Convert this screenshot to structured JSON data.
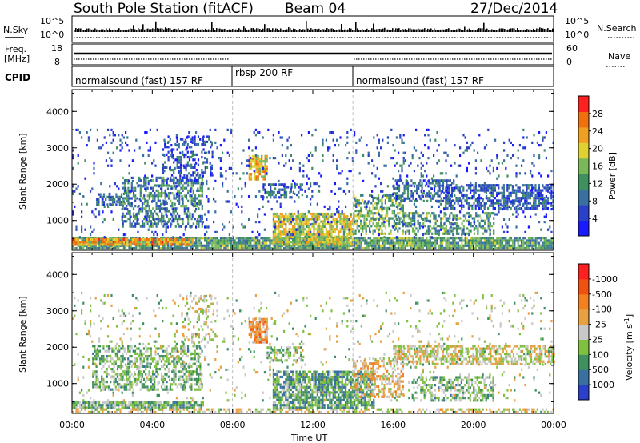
{
  "header": {
    "station": "South Pole Station (fitACF)",
    "beam": "Beam 04",
    "date": "27/Dec/2014"
  },
  "nsky_panel": {
    "left_label": "N.Sky",
    "left_ticks": [
      "10^5",
      "10^0"
    ],
    "right_ticks": [
      "10^5",
      "10^0"
    ],
    "right_legend": "N.Search"
  },
  "freq_panel": {
    "left_label_line1": "Freq.",
    "left_label_line2": "[MHz]",
    "left_ticks": [
      "18",
      "8"
    ],
    "right_ticks": [
      "60",
      "0"
    ],
    "right_legend": "Nave"
  },
  "cpid_panel": {
    "label": "CPID",
    "segments": [
      {
        "label": "normalsound (fast) 157 RF",
        "start_h": 0,
        "end_h": 8
      },
      {
        "label": "rbsp 200 RF",
        "start_h": 8,
        "end_h": 14
      },
      {
        "label": "normalsound (fast) 157 RF",
        "start_h": 14,
        "end_h": 24
      }
    ]
  },
  "x_axis": {
    "label": "Time UT",
    "ticks": [
      "00:00",
      "04:00",
      "08:00",
      "12:00",
      "16:00",
      "20:00",
      "00:00"
    ]
  },
  "power_panel": {
    "ylabel": "Slant Range [km]",
    "yticks": [
      "1000",
      "2000",
      "3000",
      "4000"
    ],
    "colorbar_label": "Power [dB]",
    "colorbar_ticks": [
      "4",
      "8",
      "12",
      "16",
      "20",
      "24",
      "28"
    ]
  },
  "velocity_panel": {
    "ylabel": "Slant Range [km]",
    "yticks": [
      "1000",
      "2000",
      "3000",
      "4000"
    ],
    "colorbar_label": "Velocity [m s",
    "colorbar_label_sup": "-1",
    "colorbar_label_end": "]",
    "colorbar_ticks": [
      "1000",
      "500",
      "100",
      "25",
      "-25",
      "-100",
      "-500",
      "-1000"
    ]
  },
  "colors": {
    "power_scale": [
      "#1a1aff",
      "#2a40c8",
      "#3a70a0",
      "#3f9060",
      "#7ab85a",
      "#e0d030",
      "#f0a020",
      "#f07010",
      "#ff2020"
    ],
    "velocity_scale": [
      "#2a40c8",
      "#3a70a0",
      "#3f9060",
      "#80c040",
      "#c8c8c8",
      "#e8a040",
      "#f08020",
      "#f05010",
      "#ff2020"
    ],
    "marker": "#c0c0c0"
  },
  "chart_data": [
    {
      "type": "heatmap",
      "title": "Power",
      "ylabel": "Slant Range [km]",
      "xlabel": "Time UT",
      "xlim_hours": [
        0,
        24
      ],
      "ylim_km": [
        180,
        4600
      ],
      "colorbar": {
        "label": "Power [dB]",
        "range": [
          0,
          30
        ]
      },
      "regions": [
        {
          "t0": 0.0,
          "t1": 24.0,
          "r0": 200,
          "r1": 500,
          "value": 12,
          "density": 0.9
        },
        {
          "t0": 0.0,
          "t1": 6.0,
          "r0": 300,
          "r1": 450,
          "value": 22,
          "density": 0.8
        },
        {
          "t0": 1.2,
          "t1": 2.5,
          "r0": 1400,
          "r1": 1700,
          "value": 8,
          "density": 0.6
        },
        {
          "t0": 2.5,
          "t1": 6.5,
          "r0": 800,
          "r1": 2200,
          "value": 10,
          "density": 0.5
        },
        {
          "t0": 4.5,
          "t1": 7.0,
          "r0": 2000,
          "r1": 3300,
          "value": 6,
          "density": 0.3
        },
        {
          "t0": 8.8,
          "t1": 9.7,
          "r0": 2100,
          "r1": 2800,
          "value": 20,
          "density": 0.8
        },
        {
          "t0": 9.5,
          "t1": 11.5,
          "r0": 1600,
          "r1": 2000,
          "value": 8,
          "density": 0.5
        },
        {
          "t0": 10.0,
          "t1": 14.0,
          "r0": 300,
          "r1": 1200,
          "value": 18,
          "density": 0.75
        },
        {
          "t0": 14.0,
          "t1": 16.5,
          "r0": 600,
          "r1": 1700,
          "value": 14,
          "density": 0.55
        },
        {
          "t0": 16.0,
          "t1": 19.0,
          "r0": 1500,
          "r1": 2100,
          "value": 8,
          "density": 0.5
        },
        {
          "t0": 16.5,
          "t1": 21.0,
          "r0": 600,
          "r1": 1200,
          "value": 12,
          "density": 0.5
        },
        {
          "t0": 18.5,
          "t1": 24.0,
          "r0": 1300,
          "r1": 2000,
          "value": 7,
          "density": 0.6
        },
        {
          "t0": 0.0,
          "t1": 24.0,
          "r0": 500,
          "r1": 3500,
          "value": 6,
          "density": 0.08
        }
      ]
    },
    {
      "type": "heatmap",
      "title": "Velocity",
      "ylabel": "Slant Range [km]",
      "xlabel": "Time UT",
      "xlim_hours": [
        0,
        24
      ],
      "ylim_km": [
        180,
        4600
      ],
      "colorbar": {
        "label": "Velocity [m s-1]",
        "range": [
          -1000,
          1000
        ]
      },
      "regions": [
        {
          "t0": 0.0,
          "t1": 6.5,
          "r0": 300,
          "r1": 450,
          "value": -300,
          "density": 0.9
        },
        {
          "t0": 0.0,
          "t1": 24.0,
          "r0": 180,
          "r1": 300,
          "value": 0,
          "density": 0.5
        },
        {
          "t0": 1.0,
          "t1": 6.5,
          "r0": 800,
          "r1": 2000,
          "value": -250,
          "density": 0.5
        },
        {
          "t0": 5.5,
          "t1": 7.0,
          "r0": 2100,
          "r1": 3400,
          "value": 0,
          "density": 0.25
        },
        {
          "t0": 8.8,
          "t1": 9.7,
          "r0": 2100,
          "r1": 2800,
          "value": 300,
          "density": 0.8
        },
        {
          "t0": 9.7,
          "t1": 11.5,
          "r0": 1600,
          "r1": 2000,
          "value": -200,
          "density": 0.5
        },
        {
          "t0": 10.0,
          "t1": 15.0,
          "r0": 300,
          "r1": 1300,
          "value": -400,
          "density": 0.75
        },
        {
          "t0": 14.0,
          "t1": 16.5,
          "r0": 600,
          "r1": 1700,
          "value": 150,
          "density": 0.5
        },
        {
          "t0": 16.0,
          "t1": 24.0,
          "r0": 1500,
          "r1": 2000,
          "value": 0,
          "density": 0.6
        },
        {
          "t0": 17.0,
          "t1": 21.0,
          "r0": 500,
          "r1": 1200,
          "value": -250,
          "density": 0.5
        },
        {
          "t0": 0.0,
          "t1": 24.0,
          "r0": 500,
          "r1": 3500,
          "value": -100,
          "density": 0.06
        }
      ]
    }
  ]
}
